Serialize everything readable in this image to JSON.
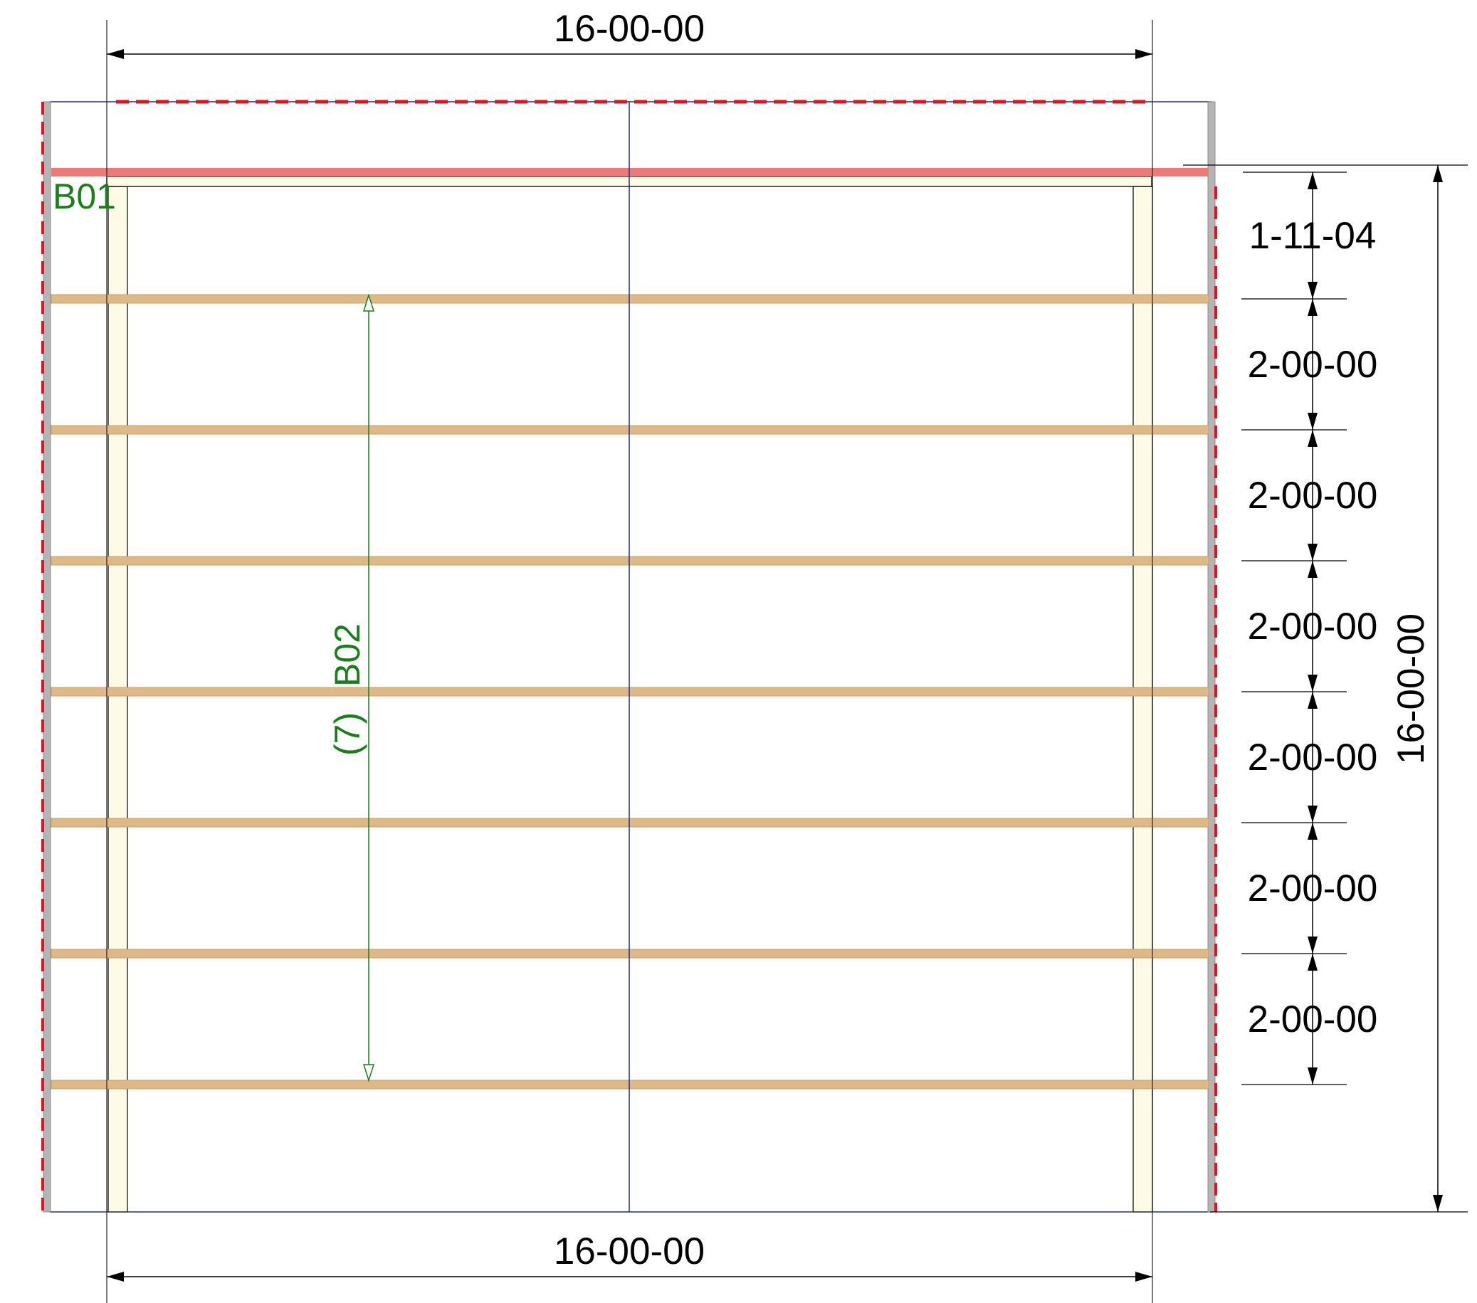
{
  "drawing": {
    "colors": {
      "background": "#ffffff",
      "joist": "#deb887",
      "joist_edge": "#c9a06a",
      "ledger_fill": "#fdfae6",
      "top_beam": "#ed7a76",
      "red_dash": "#e0131e",
      "grid_line": "#1f2a8f",
      "dimension": "#000000",
      "label": "#1c7d1c",
      "support_gray": "#b4b4b4"
    },
    "dimensions": {
      "top_overall": "16-00-00",
      "bottom_overall": "16-00-00",
      "right_overall": "16-00-00",
      "right_spacing": [
        "1-11-04",
        "2-00-00",
        "2-00-00",
        "2-00-00",
        "2-00-00",
        "2-00-00",
        "2-00-00"
      ]
    },
    "labels": {
      "beam_top": "B01",
      "beam_member": "B02",
      "beam_count": "(7)"
    },
    "joists": {
      "count": 7,
      "spacing": "2-00-00"
    }
  }
}
